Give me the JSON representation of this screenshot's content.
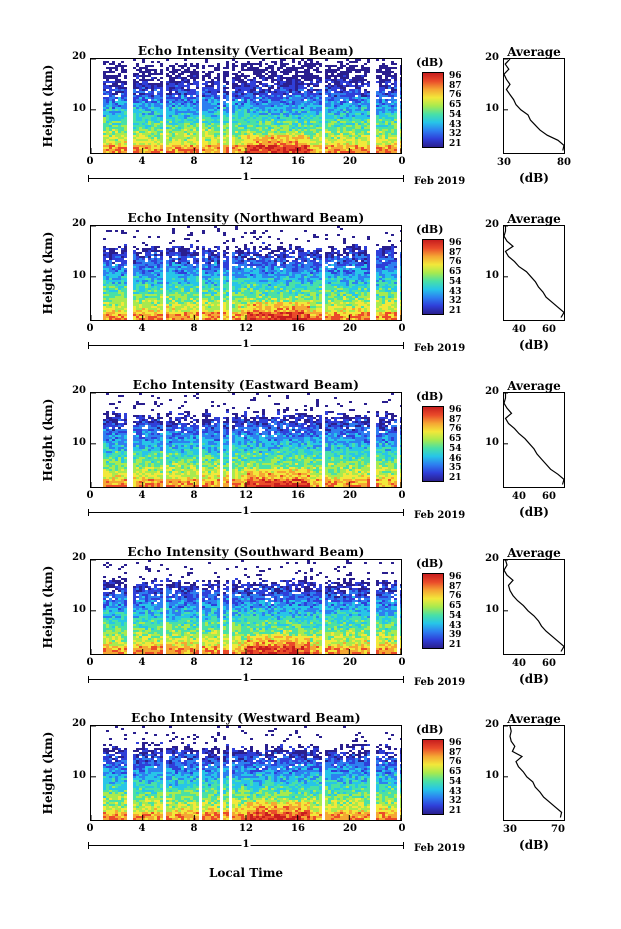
{
  "chart_data": [
    {
      "type": "heatmap",
      "title": "Echo Intensity (Vertical Beam)",
      "ylabel": "Height (km)",
      "ylim": [
        1.5,
        20
      ],
      "yticks": [
        "10",
        "20"
      ],
      "xticks": [
        "0",
        "4",
        "8",
        "12",
        "16",
        "20",
        "0"
      ],
      "xlim": [
        0,
        24
      ],
      "date_label": "1",
      "month_label": "Feb 2019",
      "colorbar": {
        "unit": "(dB)",
        "ticks": [
          "96",
          "87",
          "76",
          "65",
          "54",
          "43",
          "32",
          "21"
        ],
        "range": [
          21,
          96
        ]
      },
      "average_profile": {
        "title": "Average",
        "xlabel": "(dB)",
        "xticks": [
          "30",
          "80"
        ],
        "xlim": [
          30,
          80
        ],
        "yticks": [
          "10",
          "20"
        ],
        "height_km": [
          2,
          3,
          4,
          5,
          6,
          7,
          8,
          9,
          10,
          11,
          12,
          13,
          14,
          15,
          16,
          17,
          18,
          19,
          20
        ],
        "db": [
          79,
          80,
          75,
          66,
          60,
          56,
          52,
          50,
          44,
          40,
          38,
          35,
          32,
          35,
          32,
          30,
          34,
          31,
          35
        ]
      }
    },
    {
      "type": "heatmap",
      "title": "Echo Intensity (Northward Beam)",
      "ylabel": "Height (km)",
      "ylim": [
        1.5,
        20
      ],
      "yticks": [
        "10",
        "20"
      ],
      "xticks": [
        "0",
        "4",
        "8",
        "12",
        "16",
        "20",
        "0"
      ],
      "xlim": [
        0,
        24
      ],
      "date_label": "1",
      "month_label": "Feb 2019",
      "colorbar": {
        "unit": "(dB)",
        "ticks": [
          "96",
          "87",
          "76",
          "65",
          "54",
          "43",
          "32",
          "21"
        ],
        "range": [
          21,
          96
        ]
      },
      "average_profile": {
        "title": "Average",
        "xlabel": "(dB)",
        "xticks": [
          "40",
          "60"
        ],
        "xlim": [
          30,
          70
        ],
        "yticks": [
          "10",
          "20"
        ],
        "height_km": [
          2,
          3,
          4,
          5,
          6,
          7,
          8,
          9,
          10,
          11,
          12,
          13,
          14,
          15,
          16,
          17,
          18,
          19,
          20
        ],
        "db": [
          68,
          70,
          66,
          62,
          58,
          56,
          53,
          51,
          48,
          45,
          40,
          37,
          33,
          31,
          36,
          32,
          30,
          31,
          31
        ]
      }
    },
    {
      "type": "heatmap",
      "title": "Echo Intensity (Eastward Beam)",
      "ylabel": "Height (km)",
      "ylim": [
        1.5,
        20
      ],
      "yticks": [
        "10",
        "20"
      ],
      "xticks": [
        "0",
        "4",
        "8",
        "12",
        "16",
        "20",
        "0"
      ],
      "xlim": [
        0,
        24
      ],
      "date_label": "1",
      "month_label": "Feb 2019",
      "colorbar": {
        "unit": "(dB)",
        "ticks": [
          "96",
          "87",
          "76",
          "65",
          "54",
          "46",
          "35",
          "21"
        ],
        "range": [
          21,
          96
        ]
      },
      "average_profile": {
        "title": "Average",
        "xlabel": "(dB)",
        "xticks": [
          "40",
          "60"
        ],
        "xlim": [
          30,
          70
        ],
        "yticks": [
          "10",
          "20"
        ],
        "height_km": [
          2,
          3,
          4,
          5,
          6,
          7,
          8,
          9,
          10,
          11,
          12,
          13,
          14,
          15,
          16,
          17,
          18,
          19,
          20
        ],
        "db": [
          69,
          70,
          66,
          61,
          58,
          55,
          52,
          50,
          47,
          44,
          40,
          37,
          33,
          31,
          35,
          32,
          30,
          31,
          31
        ]
      }
    },
    {
      "type": "heatmap",
      "title": "Echo Intensity (Southward Beam)",
      "ylabel": "Height (km)",
      "ylim": [
        1.5,
        20
      ],
      "yticks": [
        "10",
        "20"
      ],
      "xticks": [
        "0",
        "4",
        "8",
        "12",
        "16",
        "20",
        "0"
      ],
      "xlim": [
        0,
        24
      ],
      "date_label": "1",
      "month_label": "Feb 2019",
      "colorbar": {
        "unit": "(dB)",
        "ticks": [
          "96",
          "87",
          "76",
          "65",
          "54",
          "43",
          "39",
          "21"
        ],
        "range": [
          21,
          96
        ]
      },
      "average_profile": {
        "title": "Average",
        "xlabel": "(dB)",
        "xticks": [
          "40",
          "60"
        ],
        "xlim": [
          30,
          70
        ],
        "yticks": [
          "10",
          "20"
        ],
        "height_km": [
          2,
          3,
          4,
          5,
          6,
          7,
          8,
          9,
          10,
          11,
          12,
          13,
          14,
          15,
          16,
          17,
          18,
          19,
          20
        ],
        "db": [
          68,
          70,
          66,
          62,
          58,
          55,
          53,
          50,
          46,
          43,
          39,
          36,
          34,
          33,
          36,
          32,
          30,
          32,
          31
        ]
      }
    },
    {
      "type": "heatmap",
      "title": "Echo Intensity (Westward Beam)",
      "ylabel": "Height (km)",
      "ylim": [
        1.5,
        20
      ],
      "yticks": [
        "10",
        "20"
      ],
      "xticks": [
        "0",
        "4",
        "8",
        "12",
        "16",
        "20",
        "0"
      ],
      "xlim": [
        0,
        24
      ],
      "date_label": "1",
      "month_label": "Feb 2019",
      "colorbar": {
        "unit": "(dB)",
        "ticks": [
          "96",
          "87",
          "76",
          "65",
          "54",
          "43",
          "32",
          "21"
        ],
        "range": [
          21,
          96
        ]
      },
      "average_profile": {
        "title": "Average",
        "xlabel": "(dB)",
        "xticks": [
          "30",
          "70"
        ],
        "xlim": [
          25,
          75
        ],
        "yticks": [
          "10",
          "20"
        ],
        "height_km": [
          2,
          3,
          4,
          5,
          6,
          7,
          8,
          9,
          10,
          11,
          12,
          13,
          14,
          15,
          16,
          17,
          18,
          19,
          20
        ],
        "db": [
          72,
          73,
          68,
          63,
          58,
          55,
          51,
          49,
          44,
          41,
          37,
          35,
          40,
          32,
          34,
          31,
          30,
          31,
          30
        ]
      }
    }
  ],
  "xaxis_title": "Local Time",
  "colors": [
    "#2a1f8f",
    "#2f3fd9",
    "#2d7ff0",
    "#27c5e8",
    "#49e0a6",
    "#a7ea4f",
    "#f2e83a",
    "#f5a733",
    "#ea4b2a",
    "#c81e1e"
  ]
}
